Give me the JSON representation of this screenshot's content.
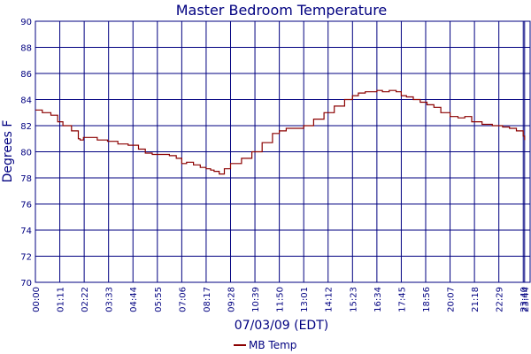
{
  "chart_data": {
    "type": "line",
    "title": "Master Bedroom Temperature",
    "xlabel": "07/03/09 (EDT)",
    "ylabel": "Degrees F",
    "ylim": [
      70,
      90
    ],
    "xlim_minutes": [
      0,
      1440
    ],
    "grid": true,
    "legend_position": "bottom-center",
    "y_ticks": [
      70,
      72,
      74,
      76,
      78,
      80,
      82,
      84,
      86,
      88,
      90
    ],
    "x_tick_labels": [
      "00:00",
      "01:11",
      "02:22",
      "03:33",
      "04:44",
      "05:55",
      "07:06",
      "08:17",
      "09:28",
      "10:39",
      "11:50",
      "13:01",
      "14:12",
      "15:23",
      "16:34",
      "17:45",
      "18:56",
      "20:07",
      "21:18",
      "22:29",
      "23:40",
      "23:44"
    ],
    "x_tick_minutes": [
      0,
      71,
      142,
      213,
      284,
      355,
      426,
      497,
      568,
      639,
      710,
      781,
      852,
      923,
      994,
      1065,
      1136,
      1207,
      1278,
      1349,
      1420,
      1424
    ],
    "colors": {
      "series": "#8b0000",
      "grid": "#000080",
      "text": "#000080"
    },
    "series": [
      {
        "name": "MB Temp",
        "x": [
          "00:00",
          "00:20",
          "00:45",
          "01:05",
          "01:20",
          "01:45",
          "02:05",
          "02:10",
          "02:20",
          "02:30",
          "03:00",
          "03:30",
          "04:00",
          "04:30",
          "05:00",
          "05:20",
          "05:40",
          "06:00",
          "06:30",
          "06:50",
          "07:06",
          "07:20",
          "07:40",
          "08:00",
          "08:17",
          "08:30",
          "08:40",
          "08:55",
          "09:10",
          "09:28",
          "10:00",
          "10:30",
          "11:00",
          "11:30",
          "11:50",
          "12:10",
          "12:40",
          "13:01",
          "13:30",
          "14:00",
          "14:30",
          "15:00",
          "15:23",
          "15:40",
          "16:00",
          "16:20",
          "16:34",
          "16:50",
          "17:10",
          "17:30",
          "17:45",
          "18:00",
          "18:20",
          "18:40",
          "19:00",
          "19:20",
          "19:40",
          "20:07",
          "20:30",
          "20:50",
          "21:10",
          "21:40",
          "22:10",
          "22:40",
          "23:00",
          "23:20",
          "23:40",
          "23:44"
        ],
        "y": [
          83.2,
          83.0,
          82.8,
          82.3,
          82.0,
          81.6,
          81.0,
          80.9,
          81.1,
          81.1,
          80.9,
          80.8,
          80.6,
          80.5,
          80.2,
          79.9,
          79.8,
          79.8,
          79.7,
          79.5,
          79.1,
          79.2,
          79.0,
          78.8,
          78.7,
          78.6,
          78.5,
          78.3,
          78.7,
          79.1,
          79.5,
          80.0,
          80.7,
          81.4,
          81.6,
          81.8,
          81.8,
          82.0,
          82.5,
          83.0,
          83.5,
          84.0,
          84.3,
          84.5,
          84.6,
          84.6,
          84.7,
          84.6,
          84.7,
          84.6,
          84.3,
          84.2,
          84.0,
          83.8,
          83.6,
          83.4,
          83.0,
          82.7,
          82.6,
          82.7,
          82.3,
          82.1,
          82.0,
          81.9,
          81.8,
          81.6,
          81.2,
          80.9
        ]
      }
    ]
  }
}
